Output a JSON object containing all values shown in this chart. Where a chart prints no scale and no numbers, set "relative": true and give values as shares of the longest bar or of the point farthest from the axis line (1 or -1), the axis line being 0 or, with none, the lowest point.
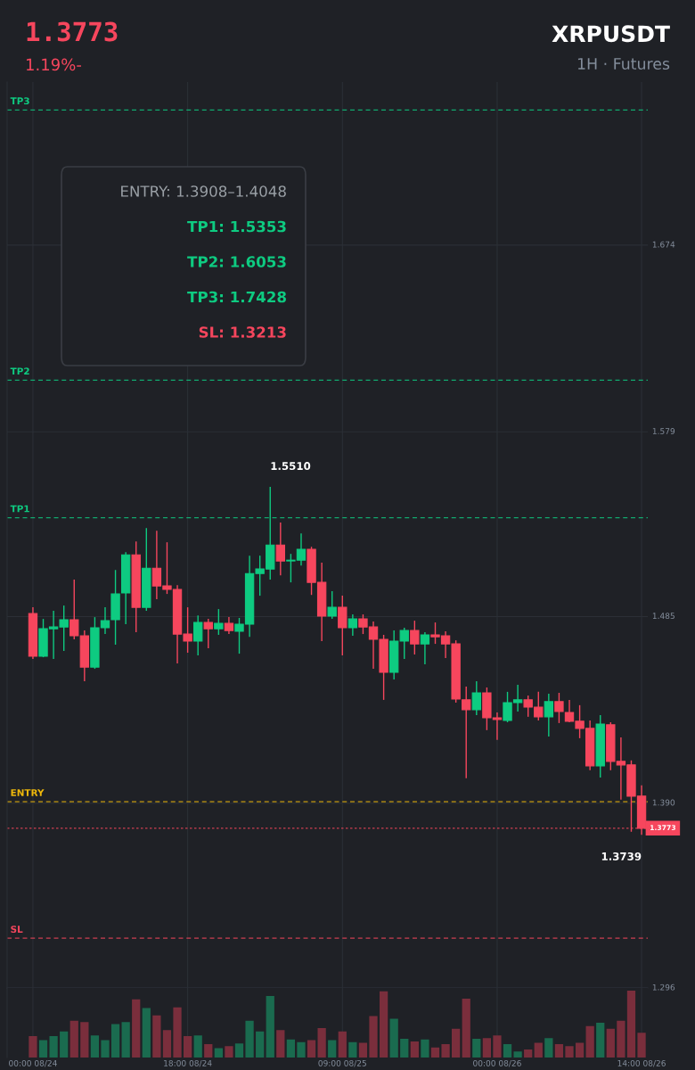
{
  "chart_data": [
    {
      "type": "candlestick",
      "title": "XRPUSDT",
      "subtitle": "1H · Futures",
      "annotations": [
        "1.3773",
        "1.19%-",
        "ENTRY: 1.3908–1.4048",
        "TP1: 1.5353",
        "TP2: 1.6053",
        "TP3: 1.7428",
        "SL: 1.3213",
        "1.5510",
        "1.3739"
      ],
      "categories": [
        null,
        null,
        null,
        null,
        null,
        null,
        null,
        null,
        null,
        null,
        null,
        null,
        null,
        null,
        null,
        null,
        null,
        null,
        null,
        null,
        null,
        null,
        null,
        null,
        null,
        null,
        null,
        null,
        null,
        null,
        null,
        null,
        null,
        null,
        null,
        null,
        null,
        null,
        null,
        null,
        null,
        null,
        null,
        null,
        null,
        null,
        null,
        null,
        null,
        null,
        null,
        null,
        null,
        null,
        null,
        null,
        null,
        null,
        null,
        null
      ],
      "ohlc": [
        [
          1.4865,
          1.4897,
          1.4634,
          1.4648
        ],
        [
          1.4648,
          1.4838,
          1.4643,
          1.4788
        ],
        [
          1.4788,
          1.4879,
          1.4634,
          1.4797
        ],
        [
          1.4797,
          1.4906,
          1.4675,
          1.4834
        ],
        [
          1.4834,
          1.5038,
          1.4734,
          1.4752
        ],
        [
          1.4752,
          1.4779,
          1.4521,
          1.4593
        ],
        [
          1.4593,
          1.4847,
          1.4584,
          1.4793
        ],
        [
          1.4793,
          1.4897,
          1.4761,
          1.4829
        ],
        [
          1.4834,
          1.5087,
          1.4707,
          1.4965
        ],
        [
          1.497,
          1.5178,
          1.4811,
          1.5164
        ],
        [
          1.5164,
          1.5232,
          1.477,
          1.4897
        ],
        [
          1.4897,
          1.53,
          1.4879,
          1.5096
        ],
        [
          1.5096,
          1.5287,
          1.4938,
          1.5006
        ],
        [
          1.5006,
          1.5228,
          1.4965,
          1.4988
        ],
        [
          1.4988,
          1.501,
          1.4612,
          1.4761
        ],
        [
          1.4761,
          1.4897,
          1.4666,
          1.4725
        ],
        [
          1.4725,
          1.4856,
          1.4652,
          1.482
        ],
        [
          1.482,
          1.4838,
          1.4689,
          1.4788
        ],
        [
          1.4788,
          1.4888,
          1.4757,
          1.4815
        ],
        [
          1.4815,
          1.4847,
          1.4761,
          1.4779
        ],
        [
          1.4775,
          1.4843,
          1.4661,
          1.4811
        ],
        [
          1.4811,
          1.516,
          1.4747,
          1.5069
        ],
        [
          1.5069,
          1.516,
          1.4956,
          1.5092
        ],
        [
          1.5092,
          1.551,
          1.5038,
          1.5214
        ],
        [
          1.5214,
          1.5328,
          1.506,
          1.5133
        ],
        [
          1.5133,
          1.5169,
          1.5024,
          1.5137
        ],
        [
          1.5137,
          1.5273,
          1.511,
          1.5192
        ],
        [
          1.5192,
          1.5205,
          1.496,
          1.5024
        ],
        [
          1.5024,
          1.5124,
          1.4725,
          1.4852
        ],
        [
          1.4852,
          1.4979,
          1.4838,
          1.4897
        ],
        [
          1.4897,
          1.4956,
          1.4652,
          1.4793
        ],
        [
          1.4793,
          1.4861,
          1.4752,
          1.4838
        ],
        [
          1.4838,
          1.4861,
          1.4761,
          1.4797
        ],
        [
          1.4797,
          1.4825,
          1.4584,
          1.4734
        ],
        [
          1.4734,
          1.4757,
          1.4426,
          1.4566
        ],
        [
          1.4566,
          1.4779,
          1.453,
          1.4725
        ],
        [
          1.4725,
          1.4793,
          1.4634,
          1.4779
        ],
        [
          1.4779,
          1.4829,
          1.4657,
          1.4711
        ],
        [
          1.4711,
          1.477,
          1.4607,
          1.4757
        ],
        [
          1.4757,
          1.482,
          1.4711,
          1.4747
        ],
        [
          1.4752,
          1.4775,
          1.4639,
          1.4711
        ],
        [
          1.4711,
          1.4729,
          1.4412,
          1.443
        ],
        [
          1.4426,
          1.4494,
          1.4027,
          1.4376
        ],
        [
          1.4376,
          1.4521,
          1.4349,
          1.4462
        ],
        [
          1.4462,
          1.4489,
          1.4272,
          1.4335
        ],
        [
          1.4335,
          1.4362,
          1.4222,
          1.4326
        ],
        [
          1.4321,
          1.4467,
          1.4312,
          1.4412
        ],
        [
          1.4412,
          1.4503,
          1.4367,
          1.4426
        ],
        [
          1.4426,
          1.4448,
          1.434,
          1.4389
        ],
        [
          1.4389,
          1.4467,
          1.4321,
          1.434
        ],
        [
          1.434,
          1.4457,
          1.424,
          1.4417
        ],
        [
          1.4417,
          1.4462,
          1.4308,
          1.4367
        ],
        [
          1.4362,
          1.4426,
          1.4312,
          1.4317
        ],
        [
          1.4317,
          1.4399,
          1.4231,
          1.4281
        ],
        [
          1.4281,
          1.4321,
          1.4068,
          1.409
        ],
        [
          1.409,
          1.4349,
          1.4031,
          1.4303
        ],
        [
          1.4299,
          1.4312,
          1.4068,
          1.4113
        ],
        [
          1.4113,
          1.4235,
          1.3918,
          1.4095
        ],
        [
          1.4095,
          1.4118,
          1.3755,
          1.3936
        ],
        [
          1.3936,
          1.3991,
          1.3739,
          1.3773
        ]
      ],
      "colors": [
        "#f6465d",
        "#0ecb81",
        "#0ecb81",
        "#0ecb81",
        "#f6465d",
        "#f6465d",
        "#0ecb81",
        "#0ecb81",
        "#0ecb81",
        "#0ecb81",
        "#f6465d",
        "#0ecb81",
        "#f6465d",
        "#f6465d",
        "#f6465d",
        "#f6465d",
        "#0ecb81",
        "#f6465d",
        "#0ecb81",
        "#f6465d",
        "#0ecb81",
        "#0ecb81",
        "#0ecb81",
        "#0ecb81",
        "#f6465d",
        "#0ecb81",
        "#0ecb81",
        "#f6465d",
        "#f6465d",
        "#0ecb81",
        "#f6465d",
        "#0ecb81",
        "#f6465d",
        "#f6465d",
        "#f6465d",
        "#0ecb81",
        "#0ecb81",
        "#f6465d",
        "#0ecb81",
        "#f6465d",
        "#f6465d",
        "#f6465d",
        "#f6465d",
        "#0ecb81",
        "#f6465d",
        "#f6465d",
        "#0ecb81",
        "#0ecb81",
        "#f6465d",
        "#f6465d",
        "#0ecb81",
        "#f6465d",
        "#f6465d",
        "#f6465d",
        "#f6465d",
        "#0ecb81",
        "#f6465d",
        "#f6465d",
        "#f6465d",
        "#f6465d"
      ],
      "ylim": [
        1.296,
        1.757
      ],
      "yticks": [
        {
          "value": 1.296,
          "label": "1.296"
        },
        {
          "value": 1.39,
          "label": "1.390"
        },
        {
          "value": 1.485,
          "label": "1.485"
        },
        {
          "value": 1.579,
          "label": "1.579"
        },
        {
          "value": 1.674,
          "label": "1.674"
        }
      ],
      "ref_lines": [
        {
          "axis": "y",
          "value": 1.7428,
          "label": "TP3",
          "color": "#0ecb81",
          "line_style": "dashed"
        },
        {
          "axis": "y",
          "value": 1.6053,
          "label": "TP2",
          "color": "#0ecb81",
          "line_style": "dashed"
        },
        {
          "axis": "y",
          "value": 1.5353,
          "label": "TP1",
          "color": "#0ecb81",
          "line_style": "dashed"
        },
        {
          "axis": "y",
          "value": 1.3908,
          "label": "ENTRY",
          "color": "#f0b90b",
          "line_style": "dashed"
        },
        {
          "axis": "y",
          "value": 1.3213,
          "label": "SL",
          "color": "#f6465d",
          "line_style": "dashed"
        },
        {
          "axis": "y",
          "value": 1.3773,
          "label": "1.3773",
          "color": "#f6465d",
          "line_style": "dotted"
        }
      ],
      "grid": true
    },
    {
      "type": "bar",
      "relative": true,
      "categories": [
        "00:00 08/24",
        null,
        null,
        null,
        null,
        null,
        null,
        null,
        null,
        null,
        null,
        null,
        null,
        null,
        null,
        "18:00 08/24",
        null,
        null,
        null,
        null,
        null,
        null,
        null,
        null,
        null,
        null,
        null,
        null,
        null,
        null,
        "09:00 08/25",
        null,
        null,
        null,
        null,
        null,
        null,
        null,
        null,
        null,
        null,
        null,
        null,
        null,
        null,
        "00:00 08/26",
        null,
        null,
        null,
        null,
        null,
        null,
        null,
        null,
        null,
        null,
        null,
        null,
        null,
        "14:00 08/26"
      ],
      "values": [
        0.32,
        0.26,
        0.32,
        0.39,
        0.55,
        0.53,
        0.33,
        0.26,
        0.5,
        0.53,
        0.87,
        0.74,
        0.63,
        0.41,
        0.75,
        0.32,
        0.33,
        0.2,
        0.14,
        0.17,
        0.21,
        0.55,
        0.39,
        0.92,
        0.41,
        0.27,
        0.23,
        0.26,
        0.44,
        0.26,
        0.39,
        0.23,
        0.22,
        0.62,
        0.99,
        0.58,
        0.28,
        0.24,
        0.27,
        0.15,
        0.2,
        0.43,
        0.88,
        0.28,
        0.29,
        0.33,
        0.2,
        0.09,
        0.12,
        0.22,
        0.29,
        0.2,
        0.17,
        0.22,
        0.47,
        0.52,
        0.43,
        0.55,
        1,
        0.37
      ],
      "colors": [
        "#7a2e3c",
        "#1a6b4f",
        "#1a6b4f",
        "#1a6b4f",
        "#7a2e3c",
        "#7a2e3c",
        "#1a6b4f",
        "#1a6b4f",
        "#1a6b4f",
        "#1a6b4f",
        "#7a2e3c",
        "#1a6b4f",
        "#7a2e3c",
        "#7a2e3c",
        "#7a2e3c",
        "#7a2e3c",
        "#1a6b4f",
        "#7a2e3c",
        "#1a6b4f",
        "#7a2e3c",
        "#1a6b4f",
        "#1a6b4f",
        "#1a6b4f",
        "#1a6b4f",
        "#7a2e3c",
        "#1a6b4f",
        "#1a6b4f",
        "#7a2e3c",
        "#7a2e3c",
        "#1a6b4f",
        "#7a2e3c",
        "#1a6b4f",
        "#7a2e3c",
        "#7a2e3c",
        "#7a2e3c",
        "#1a6b4f",
        "#1a6b4f",
        "#7a2e3c",
        "#1a6b4f",
        "#7a2e3c",
        "#7a2e3c",
        "#7a2e3c",
        "#7a2e3c",
        "#1a6b4f",
        "#7a2e3c",
        "#7a2e3c",
        "#1a6b4f",
        "#1a6b4f",
        "#7a2e3c",
        "#7a2e3c",
        "#1a6b4f",
        "#7a2e3c",
        "#7a2e3c",
        "#7a2e3c",
        "#7a2e3c",
        "#1a6b4f",
        "#7a2e3c",
        "#7a2e3c",
        "#7a2e3c",
        "#7a2e3c"
      ],
      "grid": "x"
    }
  ]
}
